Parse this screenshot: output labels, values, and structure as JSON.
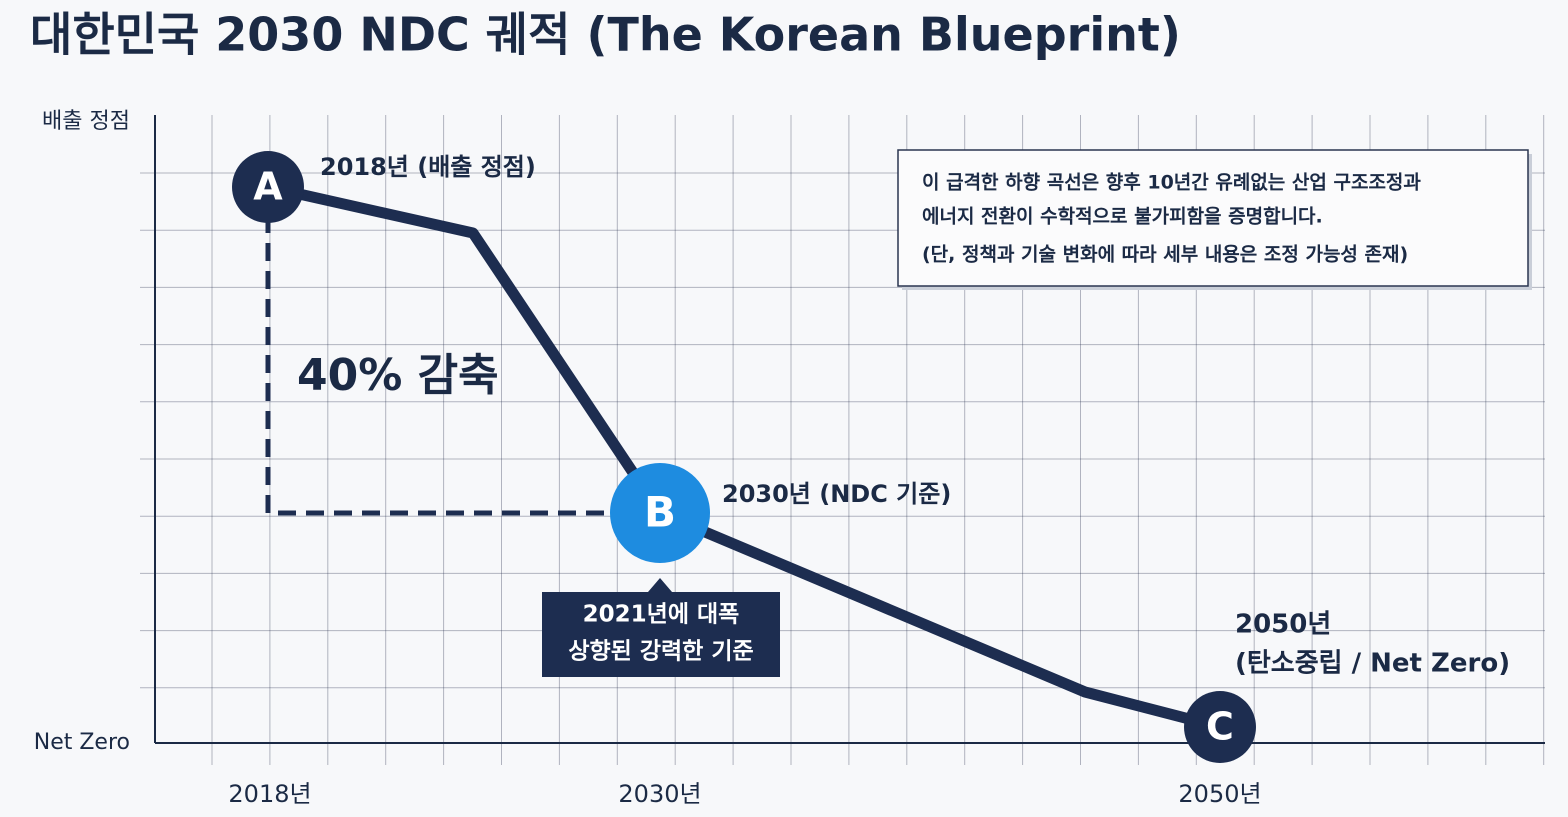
{
  "title": "대한민국 2030 NDC 궤적 (The Korean Blueprint)",
  "y_axis": {
    "top": "배출 정점",
    "bottom": "Net Zero"
  },
  "x_axis": [
    "2018년",
    "2030년",
    "2050년"
  ],
  "points": [
    {
      "marker": "A",
      "label": "2018년 (배출 정점)"
    },
    {
      "marker": "B",
      "label": "2030년 (NDC 기준)",
      "note": [
        "2021년에 대폭",
        "상향된 강력한 기준"
      ]
    },
    {
      "marker": "C",
      "label": [
        "2050년",
        "(탄소중립 / Net Zero)"
      ]
    }
  ],
  "reduction_label": "40% 감축",
  "note_box": [
    "이 급격한 하향 곡선은 향후 10년간 유례없는 산업 구조조정과",
    "에너지 전환이 수학적으로 불가피함을 증명합니다.",
    "(단, 정책과 기술 변화에 따라 세부 내용은 조정 가능성 존재)"
  ]
}
